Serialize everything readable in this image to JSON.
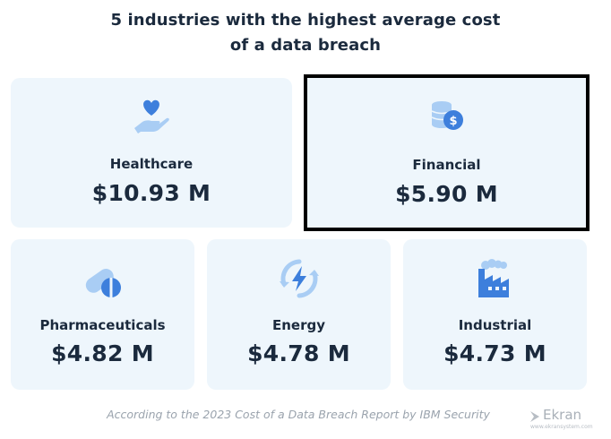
{
  "title": {
    "line1": "5 industries with the highest average cost",
    "line2": "of a data breach"
  },
  "industries": [
    {
      "name": "Healthcare",
      "cost": "$10.93 M",
      "icon": "heart-hand-icon"
    },
    {
      "name": "Financial",
      "cost": "$5.90 M",
      "icon": "coins-dollar-icon",
      "highlighted": true
    },
    {
      "name": "Pharmaceuticals",
      "cost": "$4.82 M",
      "icon": "pills-icon"
    },
    {
      "name": "Energy",
      "cost": "$4.78 M",
      "icon": "energy-bolt-icon"
    },
    {
      "name": "Industrial",
      "cost": "$4.73 M",
      "icon": "factory-icon"
    }
  ],
  "footer": {
    "source": "According to the 2023 Cost of a Data Breach Report by IBM Security"
  },
  "logo": {
    "brand": "Ekran",
    "url": "www.ekransystem.com"
  },
  "colors": {
    "card_bg": "#eef6fc",
    "icon_blue": "#4a90e2",
    "icon_light": "#b3d4f5",
    "text": "#1b2a3d"
  }
}
